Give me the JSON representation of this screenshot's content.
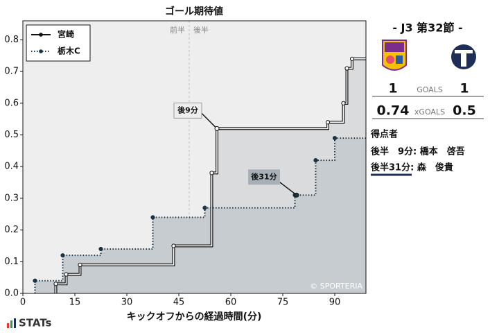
{
  "chart_data": {
    "type": "step",
    "title": "ゴール期待値",
    "xlabel": "キックオフからの経過時間(分)",
    "xlim": [
      0,
      99
    ],
    "ylim": [
      0,
      0.86
    ],
    "xticks": [
      0,
      15,
      30,
      45,
      60,
      75,
      90
    ],
    "yticks": [
      {
        "value": 0,
        "label": "0.0"
      },
      0.1,
      0.2,
      0.3,
      0.4,
      0.5,
      0.6,
      0.7,
      0.8
    ],
    "halftime": 48,
    "period_labels": [
      "前半",
      "後半"
    ],
    "legend": "upper left",
    "series": [
      {
        "name": "宮崎",
        "color": "#111111",
        "x": [
          9.5,
          12.5,
          16.5,
          43.5,
          54.5,
          56,
          88,
          92.5,
          93.5,
          95
        ],
        "values": [
          0.03,
          0.06,
          0.09,
          0.15,
          0.38,
          0.52,
          0.54,
          0.6,
          0.71,
          0.74
        ]
      },
      {
        "name": "栃木C",
        "color": "#1b3445",
        "x": [
          3.5,
          11.5,
          22.5,
          37.5,
          52.5,
          78.5,
          84.5,
          90
        ],
        "values": [
          0.04,
          0.12,
          0.14,
          0.24,
          0.27,
          0.31,
          0.42,
          0.49
        ]
      }
    ],
    "annotations": [
      {
        "text": "後9分",
        "series": 0,
        "x": 56,
        "y": 0.52
      },
      {
        "text": "後31分",
        "series": 1,
        "x": 79,
        "y": 0.31
      }
    ],
    "watermark": "© SPORTERIA"
  },
  "match": {
    "title": "- J3 第32節 -",
    "goals_label": "GOALS",
    "home_goals": 1,
    "away_goals": 1,
    "xg_label": "xGOALS",
    "home_xg": 0.74,
    "away_xg": 0.5,
    "scorers_title": "得点者",
    "scorers": [
      "後半　9分: 橋本　啓吾",
      "後半31分: 森　俊貴"
    ]
  },
  "brand": "STATs"
}
